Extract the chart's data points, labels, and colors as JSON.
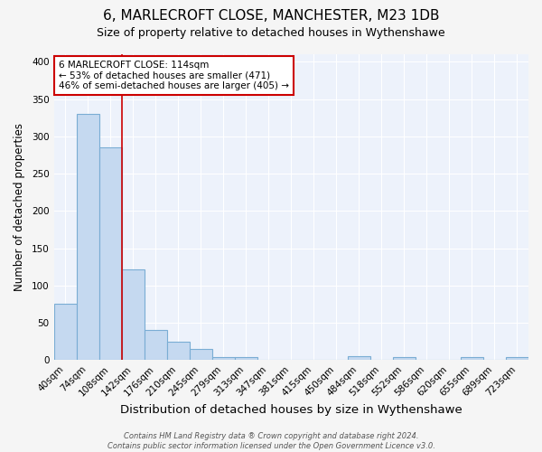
{
  "title1": "6, MARLECROFT CLOSE, MANCHESTER, M23 1DB",
  "title2": "Size of property relative to detached houses in Wythenshawe",
  "xlabel": "Distribution of detached houses by size in Wythenshawe",
  "ylabel": "Number of detached properties",
  "bin_labels": [
    "40sqm",
    "74sqm",
    "108sqm",
    "142sqm",
    "176sqm",
    "210sqm",
    "245sqm",
    "279sqm",
    "313sqm",
    "347sqm",
    "381sqm",
    "415sqm",
    "450sqm",
    "484sqm",
    "518sqm",
    "552sqm",
    "586sqm",
    "620sqm",
    "655sqm",
    "689sqm",
    "723sqm"
  ],
  "bar_heights": [
    75,
    330,
    285,
    122,
    40,
    25,
    15,
    4,
    4,
    0,
    0,
    0,
    0,
    5,
    0,
    4,
    0,
    0,
    4,
    0,
    4
  ],
  "bar_color": "#c5d9f0",
  "bar_edge_color": "#7aadd4",
  "red_line_x": 2.5,
  "annotation_text": "6 MARLECROFT CLOSE: 114sqm\n← 53% of detached houses are smaller (471)\n46% of semi-detached houses are larger (405) →",
  "footer": "Contains HM Land Registry data ® Crown copyright and database right 2024.\nContains public sector information licensed under the Open Government Licence v3.0.",
  "ylim": [
    0,
    410
  ],
  "yticks": [
    0,
    50,
    100,
    150,
    200,
    250,
    300,
    350,
    400
  ],
  "axes_bg_color": "#edf2fb",
  "fig_bg_color": "#f5f5f5",
  "grid_color": "#ffffff",
  "title1_fontsize": 11,
  "title2_fontsize": 9,
  "xlabel_fontsize": 9.5,
  "ylabel_fontsize": 8.5,
  "tick_fontsize": 7.5,
  "annotation_fontsize": 7.5,
  "footer_fontsize": 6
}
